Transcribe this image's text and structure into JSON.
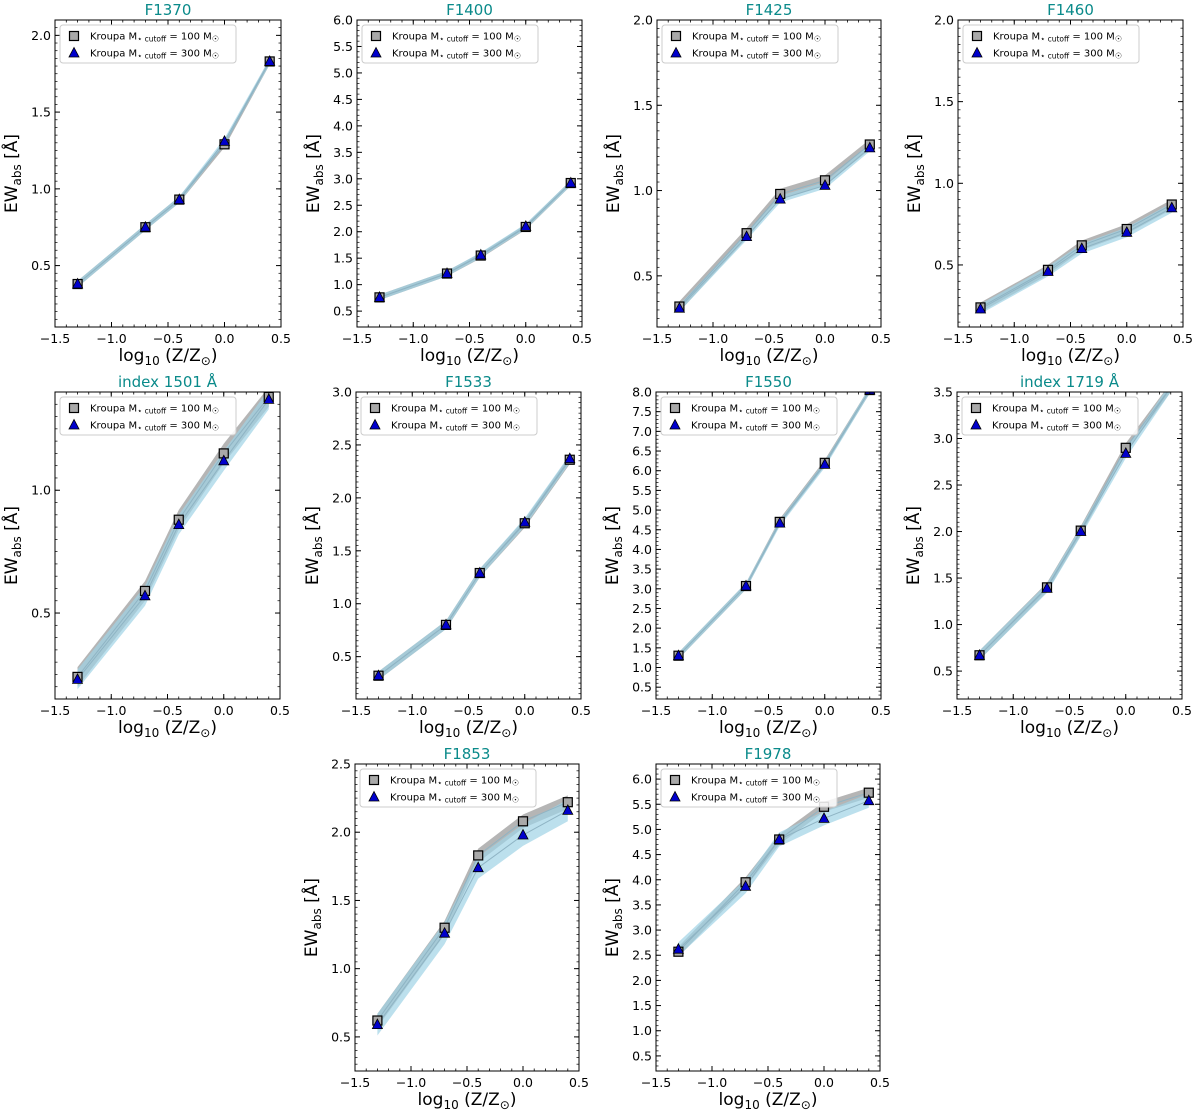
{
  "figure": {
    "xlabel": "log₁₀ (Z/Z☉)",
    "ylabel": "EWabs [Å]",
    "legend": {
      "series": [
        {
          "name": "Kroupa M⋆ cutoff = 100 M☉",
          "prefix": "Kroupa M",
          "star": "⋆",
          "sub": "cutoff",
          "eq": " = 100 M",
          "sun": "☉",
          "marker": "square",
          "color": "#a9a9a9",
          "band_color": "#a8a8a8"
        },
        {
          "name": "Kroupa M⋆ cutoff = 300 M☉",
          "prefix": "Kroupa M",
          "star": "⋆",
          "sub": "cutoff",
          "eq": " = 300 M",
          "sun": "☉",
          "marker": "triangle",
          "color": "#0000cc",
          "band_color": "#9fd3e6"
        }
      ]
    },
    "colors": {
      "title": "#0a8a8a",
      "line": "#8fb4c4"
    }
  },
  "chart_data": [
    {
      "type": "line",
      "title": "F1370",
      "x": [
        -1.3,
        -0.7,
        -0.4,
        0.0,
        0.4
      ],
      "xlim": [
        -1.5,
        0.5
      ],
      "ylim": [
        0.1,
        2.1
      ],
      "yticks": [
        0.5,
        1.0,
        1.5,
        2.0
      ],
      "ytick_labels": [
        "0.5",
        "1.0",
        "1.5",
        "2.0"
      ],
      "series": [
        {
          "name": "100",
          "values": [
            0.38,
            0.75,
            0.93,
            1.29,
            1.83
          ]
        },
        {
          "name": "300",
          "values": [
            0.38,
            0.75,
            0.93,
            1.31,
            1.83
          ]
        }
      ],
      "band": [
        0.02,
        0.02
      ]
    },
    {
      "type": "line",
      "title": "F1400",
      "x": [
        -1.3,
        -0.7,
        -0.4,
        0.0,
        0.4
      ],
      "xlim": [
        -1.5,
        0.5
      ],
      "ylim": [
        0.2,
        6.0
      ],
      "yticks": [
        0.5,
        1.0,
        1.5,
        2.0,
        2.5,
        3.0,
        3.5,
        4.0,
        4.5,
        5.0,
        5.5,
        6.0
      ],
      "ytick_labels": [
        "0.5",
        "1.0",
        "1.5",
        "2.0",
        "2.5",
        "3.0",
        "3.5",
        "4.0",
        "4.5",
        "5.0",
        "5.5",
        "6.0"
      ],
      "series": [
        {
          "name": "100",
          "values": [
            0.76,
            1.21,
            1.55,
            2.09,
            2.92
          ]
        },
        {
          "name": "300",
          "values": [
            0.76,
            1.21,
            1.56,
            2.1,
            2.92
          ]
        }
      ],
      "band": [
        0.05,
        0.05
      ]
    },
    {
      "type": "line",
      "title": "F1425",
      "x": [
        -1.3,
        -0.7,
        -0.4,
        0.0,
        0.4
      ],
      "xlim": [
        -1.5,
        0.5
      ],
      "ylim": [
        0.2,
        2.0
      ],
      "yticks": [
        0.5,
        1.0,
        1.5,
        2.0
      ],
      "ytick_labels": [
        "0.5",
        "1.0",
        "1.5",
        "2.0"
      ],
      "series": [
        {
          "name": "100",
          "values": [
            0.32,
            0.75,
            0.98,
            1.06,
            1.27
          ]
        },
        {
          "name": "300",
          "values": [
            0.31,
            0.73,
            0.95,
            1.03,
            1.25
          ]
        }
      ],
      "band": [
        0.03,
        0.02
      ]
    },
    {
      "type": "line",
      "title": "F1460",
      "x": [
        -1.3,
        -0.7,
        -0.4,
        0.0,
        0.4
      ],
      "xlim": [
        -1.5,
        0.5
      ],
      "ylim": [
        0.12,
        2.0
      ],
      "yticks": [
        0.5,
        1.0,
        1.5,
        2.0
      ],
      "ytick_labels": [
        "0.5",
        "1.0",
        "1.5",
        "2.0"
      ],
      "series": [
        {
          "name": "100",
          "values": [
            0.24,
            0.47,
            0.62,
            0.72,
            0.87
          ]
        },
        {
          "name": "300",
          "values": [
            0.23,
            0.46,
            0.6,
            0.7,
            0.85
          ]
        }
      ],
      "band": [
        0.03,
        0.03
      ]
    },
    {
      "type": "line",
      "title": "index 1501 Å",
      "x": [
        -1.3,
        -0.7,
        -0.4,
        0.0,
        0.4
      ],
      "xlim": [
        -1.5,
        0.5
      ],
      "ylim": [
        0.15,
        1.4
      ],
      "yticks": [
        0.5,
        1.0
      ],
      "ytick_labels": [
        "0.5",
        "1.0"
      ],
      "series": [
        {
          "name": "100",
          "values": [
            0.24,
            0.59,
            0.88,
            1.15,
            1.38
          ]
        },
        {
          "name": "300",
          "values": [
            0.23,
            0.57,
            0.86,
            1.12,
            1.37
          ]
        }
      ],
      "band": [
        0.04,
        0.04
      ]
    },
    {
      "type": "line",
      "title": "F1533",
      "x": [
        -1.3,
        -0.7,
        -0.4,
        0.0,
        0.4
      ],
      "xlim": [
        -1.5,
        0.5
      ],
      "ylim": [
        0.1,
        3.0
      ],
      "yticks": [
        0.5,
        1.0,
        1.5,
        2.0,
        2.5,
        3.0
      ],
      "ytick_labels": [
        "0.5",
        "1.0",
        "1.5",
        "2.0",
        "2.5",
        "3.0"
      ],
      "series": [
        {
          "name": "100",
          "values": [
            0.32,
            0.8,
            1.29,
            1.76,
            2.36
          ]
        },
        {
          "name": "300",
          "values": [
            0.32,
            0.8,
            1.29,
            1.77,
            2.37
          ]
        }
      ],
      "band": [
        0.04,
        0.04
      ]
    },
    {
      "type": "line",
      "title": "F1550",
      "x": [
        -1.3,
        -0.7,
        -0.4,
        0.0,
        0.4
      ],
      "xlim": [
        -1.5,
        0.5
      ],
      "ylim": [
        0.2,
        8.0
      ],
      "yticks": [
        0.5,
        1.0,
        1.5,
        2.0,
        2.5,
        3.0,
        3.5,
        4.0,
        4.5,
        5.0,
        5.5,
        6.0,
        6.5,
        7.0,
        7.5,
        8.0
      ],
      "ytick_labels": [
        "0.5",
        "1.0",
        "1.5",
        "2.0",
        "2.5",
        "3.0",
        "3.5",
        "4.0",
        "4.5",
        "5.0",
        "5.5",
        "6.0",
        "6.5",
        "7.0",
        "7.5",
        "8.0"
      ],
      "series": [
        {
          "name": "100",
          "values": [
            1.3,
            3.07,
            4.7,
            6.2,
            8.05
          ]
        },
        {
          "name": "300",
          "values": [
            1.3,
            3.07,
            4.67,
            6.16,
            8.05
          ]
        }
      ],
      "band": [
        0.08,
        0.08
      ]
    },
    {
      "type": "line",
      "title": "index 1719 Å",
      "x": [
        -1.3,
        -0.7,
        -0.4,
        0.0,
        0.4
      ],
      "xlim": [
        -1.5,
        0.5
      ],
      "ylim": [
        0.2,
        3.5
      ],
      "yticks": [
        0.5,
        1.0,
        1.5,
        2.0,
        2.5,
        3.0,
        3.5
      ],
      "ytick_labels": [
        "0.5",
        "1.0",
        "1.5",
        "2.0",
        "2.5",
        "3.0",
        "3.5"
      ],
      "series": [
        {
          "name": "100",
          "values": [
            0.67,
            1.4,
            2.01,
            2.9,
            3.55
          ]
        },
        {
          "name": "300",
          "values": [
            0.67,
            1.39,
            2.0,
            2.84,
            3.55
          ]
        }
      ],
      "band": [
        0.05,
        0.05
      ]
    },
    {
      "type": "line",
      "title": "F1853",
      "x": [
        -1.3,
        -0.7,
        -0.4,
        0.0,
        0.4
      ],
      "xlim": [
        -1.5,
        0.5
      ],
      "ylim": [
        0.25,
        2.5
      ],
      "yticks": [
        0.5,
        1.0,
        1.5,
        2.0,
        2.5
      ],
      "ytick_labels": [
        "0.5",
        "1.0",
        "1.5",
        "2.0",
        "2.5"
      ],
      "series": [
        {
          "name": "100",
          "values": [
            0.62,
            1.3,
            1.83,
            2.08,
            2.22
          ]
        },
        {
          "name": "300",
          "values": [
            0.59,
            1.26,
            1.74,
            1.98,
            2.16
          ]
        }
      ],
      "band": [
        0.05,
        0.08
      ]
    },
    {
      "type": "line",
      "title": "F1978",
      "x": [
        -1.3,
        -0.7,
        -0.4,
        0.0,
        0.4
      ],
      "xlim": [
        -1.5,
        0.5
      ],
      "ylim": [
        0.2,
        6.3
      ],
      "yticks": [
        0.5,
        1.0,
        1.5,
        2.0,
        2.5,
        3.0,
        3.5,
        4.0,
        4.5,
        5.0,
        5.5,
        6.0
      ],
      "ytick_labels": [
        "0.5",
        "1.0",
        "1.5",
        "2.0",
        "2.5",
        "3.0",
        "3.5",
        "4.0",
        "4.5",
        "5.0",
        "5.5",
        "6.0"
      ],
      "series": [
        {
          "name": "100",
          "values": [
            2.57,
            3.95,
            4.8,
            5.45,
            5.73
          ]
        },
        {
          "name": "300",
          "values": [
            2.62,
            3.87,
            4.8,
            5.22,
            5.57
          ]
        }
      ],
      "band": [
        0.1,
        0.14
      ]
    }
  ],
  "xticks": [
    -1.5,
    -1.0,
    -0.5,
    0.0,
    0.5
  ],
  "xtick_labels": [
    "−1.5",
    "−1.0",
    "−0.5",
    "0.0",
    "0.5"
  ]
}
